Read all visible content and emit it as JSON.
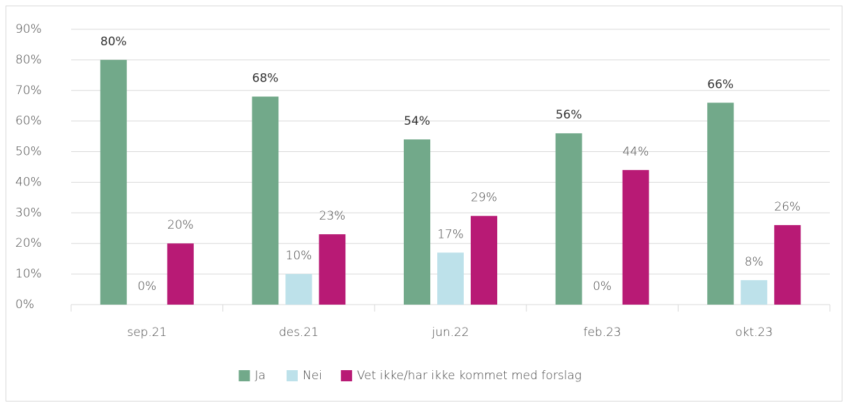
{
  "chart_data": {
    "type": "bar",
    "categories": [
      "sep.21",
      "des.21",
      "jun.22",
      "feb.23",
      "okt.23"
    ],
    "series": [
      {
        "name": "Ja",
        "color": "#72a98a",
        "values": [
          80,
          68,
          54,
          56,
          66
        ],
        "value_labels": [
          "80%",
          "68%",
          "54%",
          "56%",
          "66%"
        ]
      },
      {
        "name": "Nei",
        "color": "#bde1ea",
        "values": [
          0,
          10,
          17,
          0,
          8
        ],
        "value_labels": [
          "0%",
          "10%",
          "17%",
          "0%",
          "8%"
        ]
      },
      {
        "name": "Vet ikke/har ikke kommet med forslag",
        "color": "#b81a75",
        "values": [
          20,
          23,
          29,
          44,
          26
        ],
        "value_labels": [
          "20%",
          "23%",
          "29%",
          "44%",
          "26%"
        ]
      }
    ],
    "ylim": [
      0,
      90
    ],
    "yticks": [
      {
        "value": 0,
        "label": "0%"
      },
      {
        "value": 10,
        "label": "10%"
      },
      {
        "value": 20,
        "label": "20%"
      },
      {
        "value": 30,
        "label": "30%"
      },
      {
        "value": 40,
        "label": "40%"
      },
      {
        "value": 50,
        "label": "50%"
      },
      {
        "value": 60,
        "label": "60%"
      },
      {
        "value": 70,
        "label": "70%"
      },
      {
        "value": 80,
        "label": "80%"
      },
      {
        "value": 90,
        "label": "90%"
      }
    ],
    "grid": true,
    "legend": "bottom"
  }
}
